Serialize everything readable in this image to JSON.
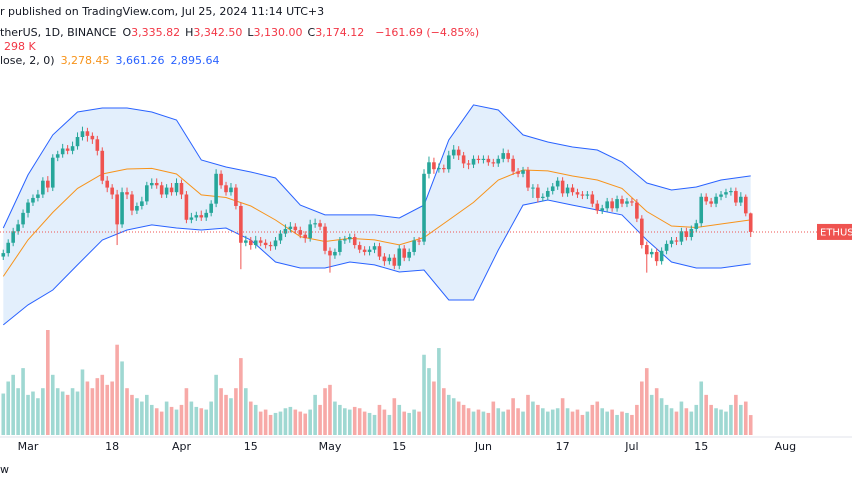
{
  "chart_data": {
    "type": "candlestick",
    "title": "r published on TradingView.com, Jul 25, 2024 11:14 UTC+3",
    "legend": {
      "symbol": "therUS, 1D, BINANCE",
      "ohlc": [
        {
          "key": "O",
          "text": "3,335.82"
        },
        {
          "key": "H",
          "text": "3,342.50"
        },
        {
          "key": "L",
          "text": "3,130.00"
        },
        {
          "key": "C",
          "text": "3,174.12"
        }
      ],
      "change": "−161.69 (−4.85%)",
      "volume": "298 K",
      "bands_name": "lose, 2, 0)",
      "basis": "3,278.45",
      "upper": "3,661.26",
      "lower": "2,895.64"
    },
    "price_label": "ETHUSI",
    "footer": "w",
    "up_color": "#26a69a",
    "down_color": "#ef5350",
    "up_volume_color": "#9fd8d2",
    "down_volume_color": "#f7a9a7",
    "band_color": "#2962ff",
    "band_fill": "#e3effc",
    "basis_color": "#f7931a",
    "xlim": [
      -5.66,
      166.46
    ],
    "ylim": [
      972.5,
      5192
    ],
    "vlim": [
      0,
      1600000
    ],
    "xticks": [
      {
        "value": 0,
        "label": "Mar"
      },
      {
        "value": 17,
        "label": "18"
      },
      {
        "value": 31,
        "label": "Apr"
      },
      {
        "value": 45,
        "label": "15"
      },
      {
        "value": 61,
        "label": "May"
      },
      {
        "value": 75,
        "label": "15"
      },
      {
        "value": 92,
        "label": "Jun"
      },
      {
        "value": 108,
        "label": "17"
      },
      {
        "value": 122,
        "label": "Jul"
      },
      {
        "value": 136,
        "label": "15"
      },
      {
        "value": 153,
        "label": "Aug"
      }
    ],
    "x": [
      -5,
      -4,
      -3,
      -2,
      -1,
      0,
      1,
      2,
      3,
      4,
      5,
      6,
      7,
      8,
      9,
      10,
      11,
      12,
      13,
      14,
      15,
      16,
      17,
      18,
      19,
      20,
      21,
      22,
      23,
      24,
      25,
      26,
      27,
      28,
      29,
      30,
      31,
      32,
      33,
      34,
      35,
      36,
      37,
      38,
      39,
      40,
      41,
      42,
      43,
      44,
      45,
      46,
      47,
      48,
      49,
      50,
      51,
      52,
      53,
      54,
      55,
      56,
      57,
      58,
      59,
      60,
      61,
      62,
      63,
      64,
      65,
      66,
      67,
      68,
      69,
      70,
      71,
      72,
      73,
      74,
      75,
      76,
      77,
      78,
      79,
      80,
      81,
      82,
      83,
      84,
      85,
      86,
      87,
      88,
      89,
      90,
      91,
      92,
      93,
      94,
      95,
      96,
      97,
      98,
      99,
      100,
      101,
      102,
      103,
      104,
      105,
      106,
      107,
      108,
      109,
      110,
      111,
      112,
      113,
      114,
      115,
      116,
      117,
      118,
      119,
      120,
      121,
      122,
      123,
      124,
      125,
      126,
      127,
      128,
      129,
      130,
      131,
      132,
      133,
      134,
      135,
      136,
      137,
      138,
      139,
      140,
      141,
      142,
      143,
      144,
      145,
      146
    ],
    "open": [
      2960,
      2990,
      3080,
      3180,
      3240,
      3340,
      3430,
      3470,
      3500,
      3620,
      3560,
      3820,
      3850,
      3900,
      3880,
      3920,
      4000,
      4050,
      4010,
      3980,
      3880,
      3620,
      3560,
      3500,
      3240,
      3520,
      3500,
      3360,
      3400,
      3440,
      3580,
      3600,
      3580,
      3500,
      3560,
      3520,
      3600,
      3500,
      3280,
      3300,
      3320,
      3300,
      3340,
      3420,
      3680,
      3580,
      3520,
      3560,
      3400,
      3080,
      3100,
      3060,
      3100,
      3080,
      3060,
      3050,
      3100,
      3160,
      3200,
      3220,
      3190,
      3150,
      3120,
      3240,
      3250,
      3220,
      3010,
      2970,
      3000,
      3100,
      3110,
      3130,
      3060,
      3020,
      3000,
      3020,
      3050,
      2960,
      2920,
      2950,
      2880,
      3030,
      2950,
      3000,
      3100,
      3090,
      3680,
      3780,
      3720,
      3730,
      3720,
      3840,
      3890,
      3840,
      3770,
      3760,
      3810,
      3800,
      3810,
      3780,
      3770,
      3810,
      3860,
      3810,
      3700,
      3680,
      3710,
      3560,
      3560,
      3470,
      3480,
      3530,
      3570,
      3620,
      3510,
      3560,
      3520,
      3500,
      3490,
      3500,
      3420,
      3360,
      3380,
      3440,
      3380,
      3460,
      3420,
      3440,
      3430,
      3290,
      3060,
      2980,
      3000,
      2920,
      3010,
      3070,
      3100,
      3090,
      3180,
      3130,
      3200,
      3250,
      3480,
      3440,
      3420,
      3480,
      3500,
      3520,
      3530,
      3430,
      3480,
      3335.82
    ],
    "high": [
      3020,
      3110,
      3210,
      3280,
      3370,
      3460,
      3500,
      3540,
      3650,
      3660,
      3850,
      3880,
      3940,
      3930,
      3960,
      4040,
      4090,
      4080,
      4040,
      4010,
      3910,
      3660,
      3590,
      3540,
      3560,
      3560,
      3530,
      3430,
      3480,
      3610,
      3640,
      3640,
      3610,
      3590,
      3600,
      3640,
      3630,
      3530,
      3340,
      3350,
      3360,
      3370,
      3450,
      3720,
      3710,
      3610,
      3600,
      3590,
      3430,
      3140,
      3130,
      3140,
      3130,
      3110,
      3090,
      3130,
      3190,
      3240,
      3260,
      3250,
      3220,
      3180,
      3280,
      3290,
      3280,
      3250,
      3040,
      3030,
      3130,
      3140,
      3160,
      3160,
      3090,
      3050,
      3050,
      3080,
      3080,
      2990,
      2980,
      2980,
      3060,
      3060,
      3030,
      3130,
      3130,
      3720,
      3830,
      3820,
      3770,
      3760,
      3880,
      3930,
      3920,
      3870,
      3800,
      3840,
      3840,
      3840,
      3840,
      3810,
      3840,
      3900,
      3890,
      3840,
      3730,
      3740,
      3740,
      3590,
      3590,
      3510,
      3560,
      3600,
      3650,
      3650,
      3590,
      3590,
      3550,
      3530,
      3530,
      3530,
      3450,
      3410,
      3470,
      3470,
      3490,
      3490,
      3470,
      3470,
      3460,
      3320,
      3090,
      3030,
      3030,
      3040,
      3100,
      3130,
      3130,
      3210,
      3210,
      3230,
      3280,
      3510,
      3510,
      3470,
      3510,
      3530,
      3550,
      3560,
      3560,
      3520,
      3500,
      3342.5
    ],
    "low": [
      2930,
      2960,
      3050,
      3150,
      3210,
      3300,
      3400,
      3440,
      3470,
      3520,
      3530,
      3790,
      3820,
      3850,
      3850,
      3890,
      3970,
      3960,
      3940,
      3840,
      3590,
      3520,
      3460,
      3060,
      3210,
      3460,
      3320,
      3330,
      3370,
      3410,
      3550,
      3550,
      3470,
      3470,
      3490,
      3490,
      3460,
      3250,
      3250,
      3270,
      3270,
      3270,
      3310,
      3390,
      3550,
      3490,
      3490,
      3370,
      2850,
      3050,
      3020,
      3030,
      3050,
      3030,
      3010,
      3020,
      3070,
      3130,
      3170,
      3160,
      3120,
      3080,
      3090,
      3210,
      3190,
      2980,
      2820,
      2940,
      2970,
      3070,
      3080,
      3030,
      2990,
      2970,
      2970,
      2990,
      2930,
      2880,
      2890,
      2850,
      2850,
      2920,
      2920,
      2970,
      3060,
      3060,
      3640,
      3680,
      3690,
      3690,
      3690,
      3810,
      3800,
      3730,
      3720,
      3730,
      3770,
      3770,
      3750,
      3740,
      3740,
      3780,
      3780,
      3670,
      3650,
      3650,
      3530,
      3470,
      3430,
      3440,
      3450,
      3500,
      3540,
      3480,
      3480,
      3490,
      3470,
      3460,
      3460,
      3390,
      3330,
      3330,
      3350,
      3350,
      3350,
      3390,
      3390,
      3400,
      3260,
      3030,
      2820,
      2950,
      2880,
      2890,
      2980,
      3040,
      3060,
      3060,
      3100,
      3100,
      3170,
      3220,
      3410,
      3390,
      3390,
      3450,
      3470,
      3490,
      3400,
      3400,
      3310,
      3130
    ],
    "close": [
      2990,
      3080,
      3180,
      3240,
      3340,
      3430,
      3470,
      3500,
      3620,
      3560,
      3820,
      3850,
      3900,
      3880,
      3920,
      4000,
      4050,
      4010,
      3980,
      3880,
      3620,
      3560,
      3500,
      3240,
      3520,
      3500,
      3360,
      3400,
      3440,
      3580,
      3600,
      3580,
      3500,
      3560,
      3520,
      3600,
      3500,
      3280,
      3300,
      3320,
      3300,
      3340,
      3420,
      3680,
      3580,
      3520,
      3560,
      3400,
      3080,
      3100,
      3060,
      3100,
      3080,
      3060,
      3050,
      3100,
      3160,
      3200,
      3220,
      3190,
      3150,
      3120,
      3240,
      3250,
      3220,
      3010,
      2970,
      3000,
      3100,
      3110,
      3130,
      3060,
      3020,
      3000,
      3020,
      3050,
      2960,
      2920,
      2950,
      2880,
      3030,
      2950,
      3000,
      3100,
      3090,
      3680,
      3780,
      3720,
      3730,
      3720,
      3840,
      3890,
      3840,
      3770,
      3760,
      3810,
      3800,
      3810,
      3780,
      3770,
      3810,
      3860,
      3810,
      3700,
      3680,
      3710,
      3560,
      3560,
      3470,
      3480,
      3530,
      3570,
      3620,
      3510,
      3560,
      3520,
      3500,
      3490,
      3500,
      3420,
      3360,
      3380,
      3440,
      3380,
      3460,
      3420,
      3440,
      3430,
      3290,
      3060,
      2980,
      3000,
      2920,
      3010,
      3070,
      3100,
      3090,
      3180,
      3130,
      3200,
      3250,
      3480,
      3440,
      3420,
      3480,
      3500,
      3520,
      3530,
      3430,
      3480,
      3335.82,
      3174.12
    ],
    "volume": [
      620000,
      800000,
      900000,
      700000,
      1000000,
      600000,
      650000,
      550000,
      700000,
      1570000,
      900000,
      700000,
      650000,
      600000,
      700000,
      650000,
      980000,
      800000,
      700000,
      850000,
      900000,
      750000,
      800000,
      1350000,
      1100000,
      700000,
      600000,
      550000,
      500000,
      600000,
      450000,
      400000,
      350000,
      500000,
      420000,
      380000,
      450000,
      700000,
      500000,
      420000,
      400000,
      380000,
      500000,
      900000,
      700000,
      600000,
      550000,
      700000,
      1150000,
      700000,
      500000,
      450000,
      350000,
      380000,
      300000,
      330000,
      350000,
      400000,
      420000,
      380000,
      350000,
      320000,
      380000,
      600000,
      450000,
      700000,
      750000,
      500000,
      450000,
      400000,
      380000,
      420000,
      400000,
      350000,
      330000,
      300000,
      450000,
      380000,
      300000,
      550000,
      450000,
      350000,
      330000,
      380000,
      350000,
      1200000,
      1000000,
      800000,
      1300000,
      700000,
      600000,
      550000,
      500000,
      450000,
      400000,
      350000,
      380000,
      350000,
      330000,
      500000,
      400000,
      350000,
      380000,
      550000,
      400000,
      350000,
      600000,
      500000,
      450000,
      400000,
      350000,
      380000,
      400000,
      550000,
      400000,
      350000,
      380000,
      300000,
      350000,
      450000,
      500000,
      400000,
      350000,
      380000,
      300000,
      350000,
      330000,
      300000,
      450000,
      800000,
      1000000,
      600000,
      700000,
      550000,
      450000,
      400000,
      350000,
      500000,
      400000,
      350000,
      450000,
      800000,
      600000,
      450000,
      400000,
      380000,
      350000,
      450000,
      600000,
      450000,
      500000,
      298000
    ],
    "bands": {
      "x": [
        -5,
        0,
        5,
        10,
        15,
        20,
        25,
        30,
        35,
        40,
        45,
        50,
        55,
        60,
        65,
        70,
        75,
        80,
        85,
        90,
        95,
        100,
        105,
        110,
        115,
        120,
        125,
        130,
        135,
        140,
        146
      ],
      "upper": [
        3208,
        3670,
        4018,
        4218,
        4252,
        4252,
        4218,
        4148,
        3800,
        3739,
        3696,
        3643,
        3408,
        3322,
        3322,
        3322,
        3295,
        3408,
        3974,
        4279,
        4235,
        4018,
        3957,
        3913,
        3887,
        3783,
        3600,
        3539,
        3565,
        3626,
        3661.26
      ],
      "basis": [
        2787,
        3105,
        3344,
        3553,
        3678,
        3722,
        3727,
        3678,
        3496,
        3474,
        3400,
        3278,
        3134,
        3091,
        3118,
        3105,
        3061,
        3126,
        3278,
        3431,
        3626,
        3713,
        3705,
        3661,
        3626,
        3553,
        3352,
        3226,
        3213,
        3243,
        3278.45
      ],
      "lower": [
        2365,
        2539,
        2669,
        2887,
        3104,
        3191,
        3235,
        3208,
        3191,
        3208,
        3104,
        2913,
        2860,
        2860,
        2913,
        2887,
        2826,
        2843,
        2582,
        2582,
        3017,
        3408,
        3452,
        3408,
        3365,
        3322,
        3104,
        2913,
        2860,
        2860,
        2895.64
      ]
    }
  }
}
